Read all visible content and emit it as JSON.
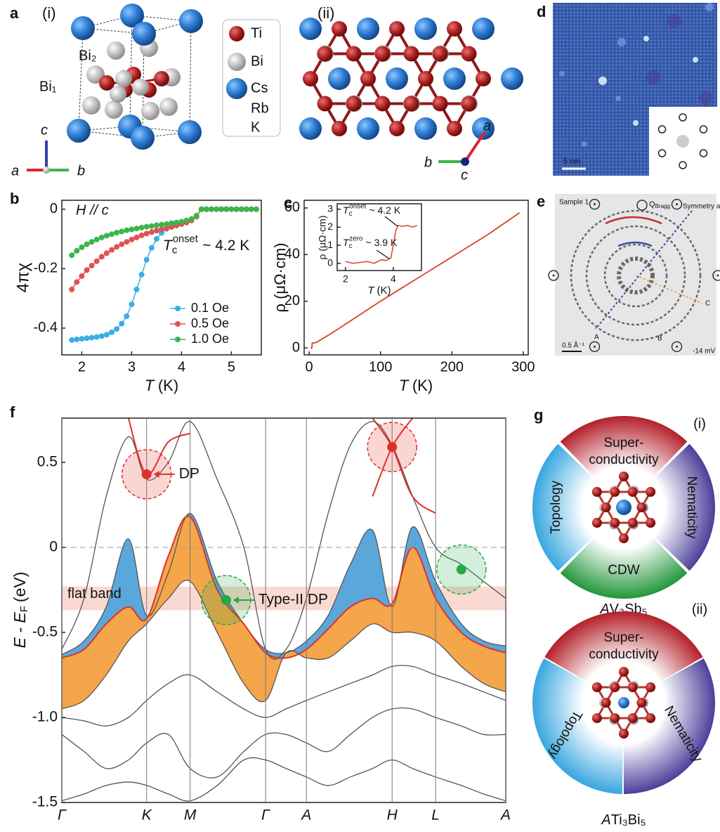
{
  "panel_a": {
    "label": "a",
    "sub_i": "(i)",
    "sub_ii": "(ii)",
    "atoms": [
      "Bi₂",
      "Bi₁"
    ],
    "legend": [
      "Ti",
      "Bi",
      "Cs",
      "Rb",
      "K"
    ],
    "axes_i": [
      "c",
      "a",
      "b"
    ],
    "axes_ii": [
      "a",
      "b",
      "c"
    ]
  },
  "panel_d": {
    "label": "d",
    "scale": "5 nm"
  },
  "panel_e": {
    "label": "e",
    "sample": "Sample 1",
    "bragg": "Q",
    "bragg_sub": "Bragg",
    "axis": "Symmetry axis",
    "points": [
      "A",
      "B",
      "C"
    ],
    "scale": "0.5 Å⁻¹",
    "bias": "-14 mV"
  },
  "panel_g": {
    "label": "g",
    "rings": [
      {
        "tag": "(i)",
        "sectors": [
          [
            "Super-",
            "conductivity"
          ],
          [
            "Nematicity"
          ],
          [
            "CDW"
          ],
          [
            "Topology"
          ]
        ],
        "formula": [
          "A",
          "V₃Sb₅"
        ]
      },
      {
        "tag": "(ii)",
        "sectors": [
          [
            "Super-",
            "conductivity"
          ],
          [
            "Nematicity"
          ],
          [
            "Topology"
          ]
        ],
        "formula": [
          "A",
          "Ti₃Bi₅"
        ]
      }
    ]
  },
  "chart_data": [
    {
      "type": "line",
      "panel": "b",
      "x_label": {
        "symbol": "T",
        "unit": "(K)"
      },
      "y_label": "4πχ",
      "annotations": [
        {
          "text": "H // c"
        },
        {
          "symbol": "T",
          "sub": "c",
          "sup": "onset",
          "text": "~ 4.2 K"
        }
      ],
      "xlim": [
        1.6,
        5.6
      ],
      "xticks": [
        2,
        3,
        4,
        5
      ],
      "ylim": [
        -0.49,
        0.03
      ],
      "yticks": [
        0,
        -0.2,
        -0.4
      ],
      "legend": "lower right",
      "markers": true,
      "x": [
        1.8,
        1.9,
        2.0,
        2.1,
        2.2,
        2.3,
        2.4,
        2.5,
        2.6,
        2.7,
        2.8,
        2.9,
        3.0,
        3.1,
        3.2,
        3.3,
        3.4,
        3.5,
        3.6,
        3.7,
        3.8,
        3.9,
        4.0,
        4.1,
        4.2,
        4.3,
        4.4,
        4.5,
        4.6,
        4.7,
        4.8,
        4.9,
        5.0,
        5.1,
        5.2,
        5.3,
        5.4,
        5.5
      ],
      "series": [
        {
          "name": "0.1 Oe",
          "color": "#3aaee6",
          "values": [
            -0.44,
            -0.438,
            -0.436,
            -0.434,
            -0.432,
            -0.43,
            -0.427,
            -0.422,
            -0.414,
            -0.403,
            -0.385,
            -0.36,
            -0.32,
            -0.27,
            -0.22,
            -0.17,
            -0.13,
            -0.1,
            -0.08,
            -0.066,
            -0.058,
            -0.052,
            -0.047,
            -0.042,
            -0.036,
            -0.025,
            0,
            0,
            0,
            0,
            0,
            0,
            0,
            0,
            0,
            0,
            0,
            0
          ]
        },
        {
          "name": "0.5 Oe",
          "color": "#e05252",
          "values": [
            -0.27,
            -0.245,
            -0.225,
            -0.205,
            -0.19,
            -0.175,
            -0.16,
            -0.148,
            -0.137,
            -0.127,
            -0.118,
            -0.11,
            -0.102,
            -0.095,
            -0.088,
            -0.082,
            -0.077,
            -0.072,
            -0.068,
            -0.064,
            -0.06,
            -0.055,
            -0.05,
            -0.045,
            -0.038,
            -0.025,
            0,
            0,
            0,
            0,
            0,
            0,
            0,
            0,
            0,
            0,
            0,
            0
          ]
        },
        {
          "name": "1.0 Oe",
          "color": "#3cb44b",
          "values": [
            -0.155,
            -0.14,
            -0.128,
            -0.118,
            -0.11,
            -0.102,
            -0.095,
            -0.089,
            -0.084,
            -0.079,
            -0.075,
            -0.071,
            -0.068,
            -0.065,
            -0.062,
            -0.059,
            -0.057,
            -0.054,
            -0.052,
            -0.05,
            -0.047,
            -0.045,
            -0.042,
            -0.038,
            -0.033,
            -0.022,
            0,
            0,
            0,
            0,
            0,
            0,
            0,
            0,
            0,
            0,
            0,
            0
          ]
        }
      ]
    },
    {
      "type": "line",
      "panel": "c",
      "x_label": {
        "symbol": "T",
        "unit": "(K)"
      },
      "y_label": "ρ (μΩ·cm)",
      "xlim": [
        -7,
        307
      ],
      "xticks": [
        0,
        100,
        200,
        300
      ],
      "ylim": [
        -3,
        63.3
      ],
      "yticks": [
        0,
        20,
        40,
        60
      ],
      "x": [
        2,
        3.9,
        4.2,
        10,
        30,
        50,
        100,
        150,
        200,
        250,
        295
      ],
      "series": [
        {
          "color": "#d9412b",
          "values": [
            0,
            0,
            2,
            2.3,
            6,
            10,
            20,
            29.5,
            39,
            48.5,
            58
          ]
        }
      ]
    },
    {
      "type": "line",
      "x_label": {
        "symbol": "T",
        "unit": "(K)"
      },
      "y_label": "ρ (μΩ·cm)",
      "annotations": [
        {
          "symbol": "T",
          "sub": "c",
          "sup": "onset",
          "text": "~ 4.2 K"
        },
        {
          "symbol": "T",
          "sub": "c",
          "sup": "zero",
          "text": "~ 3.9 K"
        }
      ],
      "xlim": [
        1.65,
        5.18
      ],
      "xticks": [
        2,
        4
      ],
      "ylim": [
        -0.4,
        3.3
      ],
      "yticks": [
        0,
        1,
        2,
        3
      ],
      "x": [
        2,
        2.3,
        2.6,
        2.9,
        3.2,
        3.5,
        3.7,
        3.9,
        4.0,
        4.1,
        4.2,
        4.4,
        4.6,
        4.8,
        5.0
      ],
      "series": [
        {
          "color": "#d9412b",
          "values": [
            0.1,
            0,
            0.05,
            0.1,
            0,
            0.2,
            0.15,
            0.3,
            1.0,
            1.8,
            2.1,
            2.05,
            2.1,
            2.0,
            2.1
          ]
        }
      ]
    },
    {
      "type": "band",
      "panel": "f",
      "y_label": {
        "text": "E - E",
        "sub": "F",
        "unit": "(eV)"
      },
      "xlim": [
        0,
        1
      ],
      "xticks": [
        {
          "value": 0,
          "label": "Γ"
        },
        {
          "value": 0.191,
          "label": "K"
        },
        {
          "value": 0.289,
          "label": "M"
        },
        {
          "value": 0.459,
          "label": "Γ"
        },
        {
          "value": 0.551,
          "label": "A"
        },
        {
          "value": 0.744,
          "label": "H"
        },
        {
          "value": 0.842,
          "label": "L"
        },
        {
          "value": 1,
          "label": "A"
        }
      ],
      "xgrid": true,
      "zero_line": true,
      "ylim": [
        -1.5,
        0.76
      ],
      "yticks": [
        0.5,
        0,
        -0.5,
        {
          "value": -1,
          "label": "-1.0"
        },
        -1.5
      ],
      "highlight": {
        "ylim": [
          -0.37,
          -0.23
        ],
        "label": "flat band",
        "color": "#f7b9ae"
      },
      "x": [
        0,
        0.05,
        0.1,
        0.15,
        0.191,
        0.24,
        0.289,
        0.35,
        0.41,
        0.459,
        0.505,
        0.551,
        0.6,
        0.65,
        0.7,
        0.744,
        0.79,
        0.842,
        0.9,
        0.95,
        1
      ],
      "series": [
        {
          "color": "#555555",
          "fill": "#5aa7dc",
          "values": [
            -0.63,
            -0.55,
            -0.35,
            0.05,
            -0.4,
            -0.15,
            0.2,
            -0.2,
            -0.45,
            -0.6,
            -0.62,
            -0.55,
            -0.4,
            -0.1,
            0.1,
            -0.35,
            0.12,
            -0.2,
            -0.45,
            -0.55,
            -0.58
          ]
        },
        {
          "color": "#e0302a",
          "fill": "#f5a54a",
          "values": [
            -0.65,
            -0.6,
            -0.45,
            -0.35,
            -0.42,
            -0.05,
            0.18,
            -0.25,
            -0.45,
            -0.62,
            -0.65,
            -0.6,
            -0.48,
            -0.35,
            -0.3,
            -0.33,
            0.0,
            -0.3,
            -0.5,
            -0.58,
            -0.62
          ]
        },
        {
          "color": "#555555",
          "values": [
            -0.95,
            -0.9,
            -0.75,
            -0.55,
            -0.45,
            -0.3,
            -0.2,
            -0.5,
            -0.8,
            -0.9,
            -0.62,
            -0.65,
            -0.65,
            -0.55,
            -0.45,
            -0.5,
            -0.5,
            -0.55,
            -0.7,
            -0.8,
            -0.85
          ]
        },
        {
          "color": "#555555",
          "values": [
            -0.6,
            -0.3,
            0.3,
            0.65,
            0.4,
            0.5,
            0.74,
            0.4,
            0.0,
            -0.6,
            -0.6,
            -0.3,
            0.2,
            0.6,
            0.74,
            0.6,
            0.3,
            0.0,
            -0.1,
            -0.2,
            -0.3
          ]
        },
        {
          "color": "#555555",
          "values": [
            -1.0,
            -1.02,
            -1.05,
            -1.0,
            -0.9,
            -0.8,
            -0.75,
            -0.85,
            -0.95,
            -1.0,
            -0.95,
            -0.9,
            -0.85,
            -0.8,
            -0.75,
            -0.7,
            -0.7,
            -0.75,
            -0.8,
            -0.85,
            -0.9
          ]
        },
        {
          "color": "#555555",
          "values": [
            -1.1,
            -1.2,
            -1.3,
            -1.25,
            -1.15,
            -1.1,
            -1.3,
            -1.35,
            -1.2,
            -1.1,
            -1.1,
            -1.15,
            -1.2,
            -1.1,
            -1.0,
            -0.95,
            -0.95,
            -1.0,
            -1.05,
            -1.1,
            -1.1
          ]
        },
        {
          "color": "#555555",
          "values": [
            -1.49,
            -1.45,
            -1.4,
            -1.38,
            -1.4,
            -1.45,
            -1.49,
            -1.4,
            -1.25,
            -1.25,
            -1.3,
            -1.35,
            -1.4,
            -1.35,
            -1.3,
            -1.25,
            -1.3,
            -1.35,
            -1.4,
            -1.45,
            -1.49
          ]
        },
        {
          "color": "#e0302a",
          "values": [
            null,
            null,
            null,
            0.76,
            0.43,
            0.62,
            0.67,
            null,
            null,
            null,
            null,
            null,
            null,
            null,
            null,
            null,
            null,
            null,
            null,
            null,
            null
          ]
        },
        {
          "color": "#e0302a",
          "values": [
            null,
            null,
            null,
            null,
            null,
            null,
            null,
            null,
            null,
            null,
            null,
            null,
            null,
            null,
            0.76,
            0.59,
            0.3,
            0.2,
            null,
            null,
            null
          ]
        },
        {
          "color": "#e0302a",
          "values": [
            null,
            null,
            null,
            null,
            null,
            null,
            null,
            null,
            null,
            null,
            null,
            null,
            null,
            null,
            0.3,
            0.59,
            0.76,
            null,
            null,
            null,
            null
          ]
        }
      ],
      "markers": [
        {
          "x": 0.191,
          "y": 0.43,
          "label": "DP",
          "color": "#e0302a"
        },
        {
          "x": 0.37,
          "y": -0.31,
          "label": "Type-II DP",
          "color": "#22aa44"
        },
        {
          "x": 0.744,
          "y": 0.59,
          "color": "#e0302a"
        },
        {
          "x": 0.9,
          "y": -0.13,
          "color": "#22aa44"
        }
      ]
    }
  ]
}
